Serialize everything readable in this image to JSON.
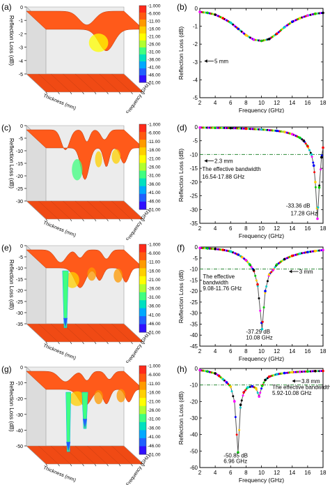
{
  "figure": {
    "panel_labels": [
      "(a)",
      "(b)",
      "(c)",
      "(d)",
      "(e)",
      "(f)",
      "(g)",
      "(h)"
    ],
    "surface_axis_labels": {
      "z": "Reflection Loss (dB)",
      "thickness": "Thickness (mm)",
      "frequency": "Frequency (GHz)"
    },
    "colorbar_ticks": [
      "-1.000",
      "-6.000",
      "-11.00",
      "-16.00",
      "-21.00",
      "-26.00",
      "-31.00",
      "-36.00",
      "-41.00",
      "-46.00",
      "-51.00"
    ],
    "colorbar_colors": [
      "#ff2a1a",
      "#ff5a10",
      "#ff9a00",
      "#ffd000",
      "#ffff00",
      "#b0ff30",
      "#40ff80",
      "#00e0c0",
      "#00a8ff",
      "#2060ff",
      "#3010ff"
    ],
    "surface_colors": {
      "top": "#ff5a1a",
      "floor": "#f04a14",
      "wall": "#c9c9c9"
    },
    "line_colors": [
      "#ff00ff",
      "#0000ff",
      "#ff0000",
      "#00cc00",
      "#ffcc00",
      "#00cccc",
      "#000000"
    ],
    "threshold_color": "#2e8b3a"
  },
  "chart_data": [
    {
      "panel": "(a)",
      "type": "surface",
      "zlabel": "Reflection Loss (dB)",
      "xlabel": "Thickness (mm)",
      "ylabel": "Frequency (GHz)",
      "zticks": [
        "0",
        "-1",
        "-2",
        "-3",
        "-4",
        "-5"
      ],
      "zlim": [
        -5,
        0
      ],
      "colorbar": [
        -1.0,
        -51.0
      ]
    },
    {
      "panel": "(b)",
      "type": "line",
      "xlabel": "Frequency (GHz)",
      "ylabel": "Reflection Loss (dB)",
      "xlim": [
        2,
        18
      ],
      "ylim": [
        -5,
        0
      ],
      "xticks": [
        2,
        4,
        6,
        8,
        10,
        12,
        14,
        16,
        18
      ],
      "yticks": [
        0,
        -1,
        -2,
        -3,
        -4,
        -5
      ],
      "annotations": [
        {
          "text": "5 mm"
        }
      ],
      "series": [
        {
          "name": "5 mm",
          "x": [
            2,
            3,
            4,
            5,
            6,
            7,
            8,
            9,
            10,
            11,
            12,
            13,
            14,
            15,
            16,
            17,
            18
          ],
          "y": [
            -0.2,
            -0.25,
            -0.35,
            -0.55,
            -0.8,
            -1.15,
            -1.5,
            -1.75,
            -1.82,
            -1.72,
            -1.42,
            -1.05,
            -0.75,
            -0.55,
            -0.4,
            -0.3,
            -0.25
          ]
        }
      ]
    },
    {
      "panel": "(c)",
      "type": "surface",
      "zlabel": "Reflection Loss (dB)",
      "xlabel": "Thickness (mm)",
      "ylabel": "Frequency (GHz)",
      "zticks": [
        "0",
        "-5",
        "-10",
        "-15",
        "-20",
        "-25",
        "-30"
      ],
      "zlim": [
        -30,
        0
      ],
      "colorbar": [
        -1.0,
        -51.0
      ]
    },
    {
      "panel": "(d)",
      "type": "line",
      "xlabel": "Frequency (GHz)",
      "ylabel": "Reflection Loss (dB)",
      "xlim": [
        2,
        18
      ],
      "ylim": [
        -35,
        0
      ],
      "xticks": [
        2,
        4,
        6,
        8,
        10,
        12,
        14,
        16,
        18
      ],
      "yticks": [
        0,
        -5,
        -10,
        -15,
        -20,
        -25,
        -30,
        -35
      ],
      "threshold": -10,
      "annotations": [
        {
          "text": "2.3 mm"
        },
        {
          "text": "The effective bandwidth"
        },
        {
          "text": "16.54-17.88 GHz"
        },
        {
          "text": "-33.36 dB"
        },
        {
          "text": "17.28 GHz"
        }
      ],
      "series": [
        {
          "name": "2.3 mm",
          "x": [
            2,
            4,
            6,
            8,
            10,
            12,
            13,
            14,
            15,
            15.5,
            16,
            16.5,
            16.8,
            17.0,
            17.28,
            17.5,
            17.8,
            18
          ],
          "y": [
            -0.2,
            -0.3,
            -0.4,
            -0.6,
            -0.9,
            -1.4,
            -1.8,
            -2.6,
            -3.9,
            -5.0,
            -7.0,
            -10.0,
            -14.0,
            -20.0,
            -33.36,
            -22.0,
            -11.0,
            -7.5
          ]
        }
      ]
    },
    {
      "panel": "(e)",
      "type": "surface",
      "zlabel": "Reflection Loss (dB)",
      "xlabel": "Thickness (mm)",
      "ylabel": "Frequency (GHz)",
      "zticks": [
        "0",
        "-5",
        "-10",
        "-15",
        "-20",
        "-25",
        "-30",
        "-35"
      ],
      "zlim": [
        -35,
        0
      ],
      "colorbar": [
        -1.0,
        -51.0
      ]
    },
    {
      "panel": "(f)",
      "type": "line",
      "xlabel": "Frequency (GHz)",
      "ylabel": "Reflection Loss (dB)",
      "xlim": [
        2,
        18
      ],
      "ylim": [
        -45,
        0
      ],
      "xticks": [
        2,
        4,
        6,
        8,
        10,
        12,
        14,
        16,
        18
      ],
      "yticks": [
        0,
        -5,
        -10,
        -15,
        -20,
        -25,
        -30,
        -35,
        -40,
        -45
      ],
      "threshold": -10,
      "annotations": [
        {
          "text": "3 mm"
        },
        {
          "text": "The effective"
        },
        {
          "text": "bandwidth"
        },
        {
          "text": "9.08-11.76 GHz"
        },
        {
          "text": "-37.29 dB"
        },
        {
          "text": "10.08 GHz"
        }
      ],
      "series": [
        {
          "name": "3 mm",
          "x": [
            2,
            3,
            4,
            5,
            6,
            7,
            7.5,
            8,
            8.5,
            9,
            9.5,
            10.08,
            10.5,
            11,
            11.5,
            12,
            13,
            14,
            15,
            16,
            17,
            18
          ],
          "y": [
            -0.4,
            -0.6,
            -0.9,
            -1.3,
            -2.0,
            -3.5,
            -4.6,
            -6.0,
            -8.0,
            -10.5,
            -17.0,
            -37.29,
            -20.0,
            -12.5,
            -10.5,
            -8.0,
            -5.5,
            -4.0,
            -3.0,
            -2.3,
            -1.8,
            -1.4
          ]
        }
      ]
    },
    {
      "panel": "(g)",
      "type": "surface",
      "zlabel": "Reflection Loss (dB)",
      "xlabel": "Thickness (mm)",
      "ylabel": "Frequency (GHz)",
      "zticks": [
        "0",
        "-10",
        "-20",
        "-30",
        "-40",
        "-50"
      ],
      "zlim": [
        -50,
        0
      ],
      "colorbar": [
        -1.0,
        -51.0
      ]
    },
    {
      "panel": "(h)",
      "type": "line",
      "xlabel": "Frequency (GHz)",
      "ylabel": "Reflection Loss (dB)",
      "xlim": [
        2,
        18
      ],
      "ylim": [
        -60,
        0
      ],
      "xticks": [
        2,
        4,
        6,
        8,
        10,
        12,
        14,
        16,
        18
      ],
      "yticks": [
        0,
        -10,
        -20,
        -30,
        -40,
        -50,
        -60
      ],
      "threshold": -10,
      "annotations": [
        {
          "text": "3.8 mm"
        },
        {
          "text": "The effective bandwidth"
        },
        {
          "text": "5.92-10.08 GHz"
        },
        {
          "text": "-50.85 dB"
        },
        {
          "text": "6.96 GHz"
        }
      ],
      "series": [
        {
          "name": "3.8 mm",
          "x": [
            2,
            3,
            4,
            4.5,
            5,
            5.5,
            6,
            6.5,
            6.96,
            7.3,
            7.7,
            8.2,
            8.8,
            9.3,
            9.7,
            10.1,
            10.5,
            11,
            12,
            13,
            14,
            15,
            16,
            17,
            18
          ],
          "y": [
            -1.0,
            -1.8,
            -3.0,
            -4.5,
            -6.5,
            -8.5,
            -11.0,
            -20.0,
            -50.85,
            -22.0,
            -14.5,
            -11.5,
            -10.8,
            -12.0,
            -17.0,
            -10.5,
            -7.0,
            -5.0,
            -3.5,
            -2.8,
            -2.3,
            -2.0,
            -1.8,
            -1.6,
            -1.5
          ]
        }
      ]
    }
  ]
}
